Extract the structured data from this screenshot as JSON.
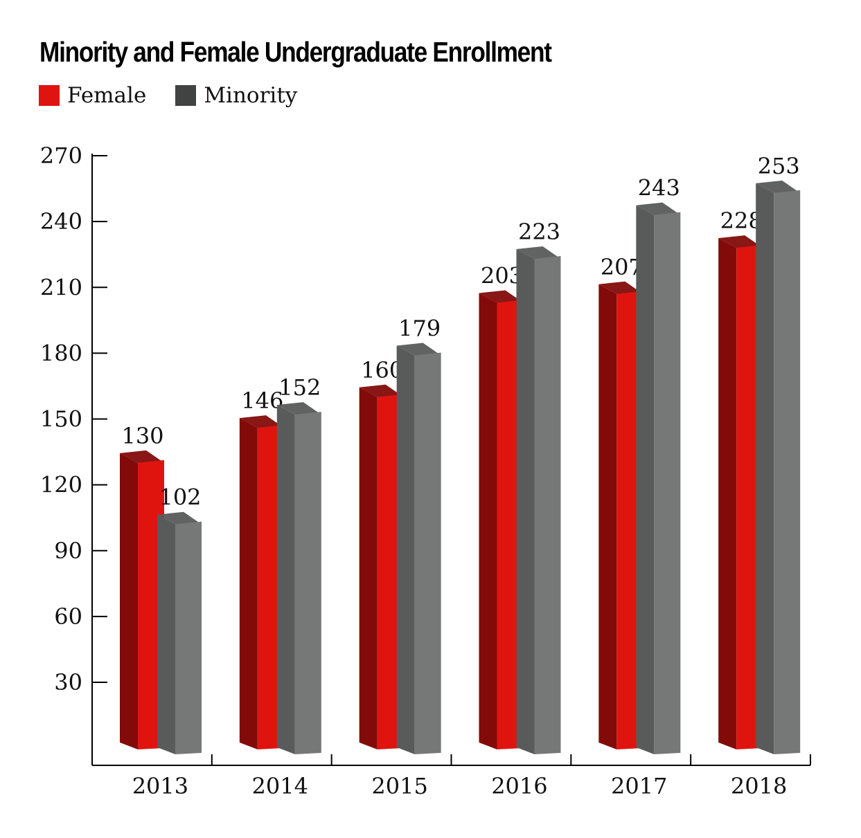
{
  "chart_data": {
    "type": "bar",
    "title": "Minority and Female Undergraduate Enrollment",
    "xlabel": "",
    "ylabel": "",
    "categories": [
      "2013",
      "2014",
      "2015",
      "2016",
      "2017",
      "2018"
    ],
    "series": [
      {
        "name": "Female",
        "values": [
          130,
          146,
          160,
          203,
          207,
          228
        ],
        "color": "#e0140f",
        "side_color": "#820b0a"
      },
      {
        "name": "Minority",
        "values": [
          102,
          152,
          179,
          223,
          243,
          253
        ],
        "color": "#767777",
        "side_color": "#595b5b"
      }
    ],
    "ylim": [
      0,
      270
    ],
    "yticks": [
      "30",
      "60",
      "90",
      "120",
      "150",
      "180",
      "210",
      "240",
      "270"
    ],
    "grid": false,
    "legend_position": "top-left",
    "three_d": true
  }
}
